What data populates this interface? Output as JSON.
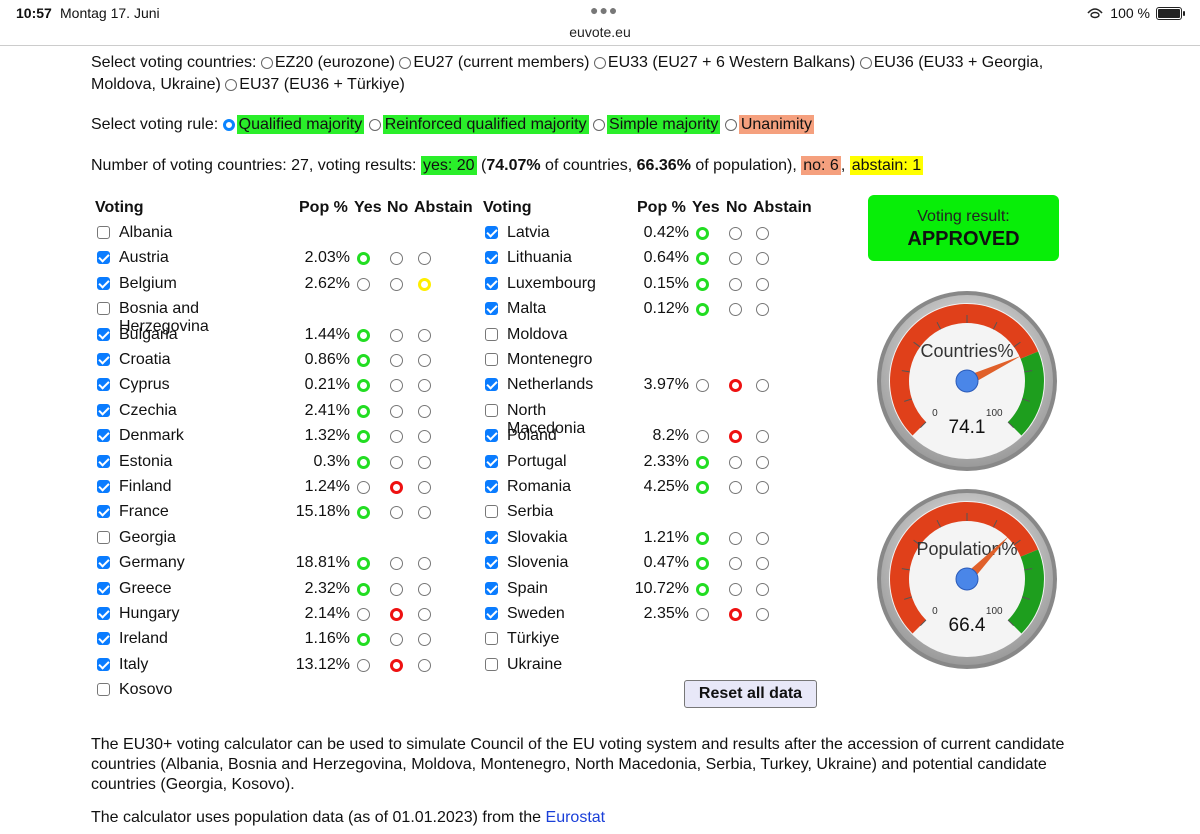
{
  "status": {
    "time": "10:57",
    "date": "Montag 17. Juni",
    "url": "euvote.eu",
    "battery": "100 %"
  },
  "countries_sel": {
    "label": "Select voting countries:",
    "opt1": "EZ20 (eurozone)",
    "opt2": "EU27 (current members)",
    "opt3": "EU33 (EU27 + 6 Western Balkans)",
    "opt4": "EU36 (EU33 + Georgia,",
    "opt4b": "Moldova, Ukraine)",
    "opt5": "EU37 (EU36 + Türkiye)"
  },
  "rule_sel": {
    "label": "Select voting rule:",
    "qmv": "Qualified majority",
    "rqmv": "Reinforced qualified majority",
    "simple": "Simple majority",
    "unan": "Unanimity"
  },
  "summary": {
    "prefix": "Number of voting countries: 27, voting results:",
    "yes": "yes: 20",
    "open": "(",
    "pct_countries": "74.07%",
    "of_countries": "of countries,",
    "pct_pop": "66.36%",
    "of_pop": "of population),",
    "no": "no: 6",
    "comma": ",",
    "abstain": "abstain: 1"
  },
  "headers": {
    "voting": "Voting",
    "pop": "Pop %",
    "yes": "Yes",
    "no": "No",
    "abstain": "Abstain"
  },
  "left": [
    {
      "name": "Albania",
      "checked": false,
      "pct": "",
      "vote": ""
    },
    {
      "name": "Austria",
      "checked": true,
      "pct": "2.03%",
      "vote": "yes"
    },
    {
      "name": "Belgium",
      "checked": true,
      "pct": "2.62%",
      "vote": "abstain"
    },
    {
      "name": "Bosnia and Herzegovina",
      "checked": false,
      "pct": "",
      "vote": ""
    },
    {
      "name": "Bulgaria",
      "checked": true,
      "pct": "1.44%",
      "vote": "yes"
    },
    {
      "name": "Croatia",
      "checked": true,
      "pct": "0.86%",
      "vote": "yes"
    },
    {
      "name": "Cyprus",
      "checked": true,
      "pct": "0.21%",
      "vote": "yes"
    },
    {
      "name": "Czechia",
      "checked": true,
      "pct": "2.41%",
      "vote": "yes"
    },
    {
      "name": "Denmark",
      "checked": true,
      "pct": "1.32%",
      "vote": "yes"
    },
    {
      "name": "Estonia",
      "checked": true,
      "pct": "0.3%",
      "vote": "yes"
    },
    {
      "name": "Finland",
      "checked": true,
      "pct": "1.24%",
      "vote": "no"
    },
    {
      "name": "France",
      "checked": true,
      "pct": "15.18%",
      "vote": "yes"
    },
    {
      "name": "Georgia",
      "checked": false,
      "pct": "",
      "vote": ""
    },
    {
      "name": "Germany",
      "checked": true,
      "pct": "18.81%",
      "vote": "yes"
    },
    {
      "name": "Greece",
      "checked": true,
      "pct": "2.32%",
      "vote": "yes"
    },
    {
      "name": "Hungary",
      "checked": true,
      "pct": "2.14%",
      "vote": "no"
    },
    {
      "name": "Ireland",
      "checked": true,
      "pct": "1.16%",
      "vote": "yes"
    },
    {
      "name": "Italy",
      "checked": true,
      "pct": "13.12%",
      "vote": "no"
    },
    {
      "name": "Kosovo",
      "checked": false,
      "pct": "",
      "vote": ""
    }
  ],
  "right": [
    {
      "name": "Latvia",
      "checked": true,
      "pct": "0.42%",
      "vote": "yes"
    },
    {
      "name": "Lithuania",
      "checked": true,
      "pct": "0.64%",
      "vote": "yes"
    },
    {
      "name": "Luxembourg",
      "checked": true,
      "pct": "0.15%",
      "vote": "yes"
    },
    {
      "name": "Malta",
      "checked": true,
      "pct": "0.12%",
      "vote": "yes"
    },
    {
      "name": "Moldova",
      "checked": false,
      "pct": "",
      "vote": ""
    },
    {
      "name": "Montenegro",
      "checked": false,
      "pct": "",
      "vote": ""
    },
    {
      "name": "Netherlands",
      "checked": true,
      "pct": "3.97%",
      "vote": "no"
    },
    {
      "name": "North Macedonia",
      "checked": false,
      "pct": "",
      "vote": ""
    },
    {
      "name": "Poland",
      "checked": true,
      "pct": "8.2%",
      "vote": "no"
    },
    {
      "name": "Portugal",
      "checked": true,
      "pct": "2.33%",
      "vote": "yes"
    },
    {
      "name": "Romania",
      "checked": true,
      "pct": "4.25%",
      "vote": "yes"
    },
    {
      "name": "Serbia",
      "checked": false,
      "pct": "",
      "vote": ""
    },
    {
      "name": "Slovakia",
      "checked": true,
      "pct": "1.21%",
      "vote": "yes"
    },
    {
      "name": "Slovenia",
      "checked": true,
      "pct": "0.47%",
      "vote": "yes"
    },
    {
      "name": "Spain",
      "checked": true,
      "pct": "10.72%",
      "vote": "yes"
    },
    {
      "name": "Sweden",
      "checked": true,
      "pct": "2.35%",
      "vote": "no"
    },
    {
      "name": "Türkiye",
      "checked": false,
      "pct": "",
      "vote": ""
    },
    {
      "name": "Ukraine",
      "checked": false,
      "pct": "",
      "vote": ""
    }
  ],
  "result": {
    "label": "Voting result:",
    "value": "APPROVED"
  },
  "gauges": [
    {
      "label": "Countries%",
      "value": 74.1,
      "display": "74.1",
      "min": "0",
      "max": "100"
    },
    {
      "label": "Population%",
      "value": 66.4,
      "display": "66.4",
      "min": "0",
      "max": "100"
    }
  ],
  "reset_label": "Reset all data",
  "para1": "The EU30+ voting calculator can be used to simulate Council of the EU voting system and results after the accession of current candidate countries (Albania, Bosnia and Herzegovina, Moldova, Montenegro, North Macedonia, Serbia, Turkey, Ukraine) and potential candidate countries (Georgia, Kosovo).",
  "para2_text": "The calculator uses population data (as of 01.01.2023) from the",
  "para2_link": "Eurostat",
  "colors": {
    "green": "#2aee2a",
    "red": "#e0401a",
    "gauge_green": "#1e9e1e",
    "accent": "#0a84ff"
  }
}
